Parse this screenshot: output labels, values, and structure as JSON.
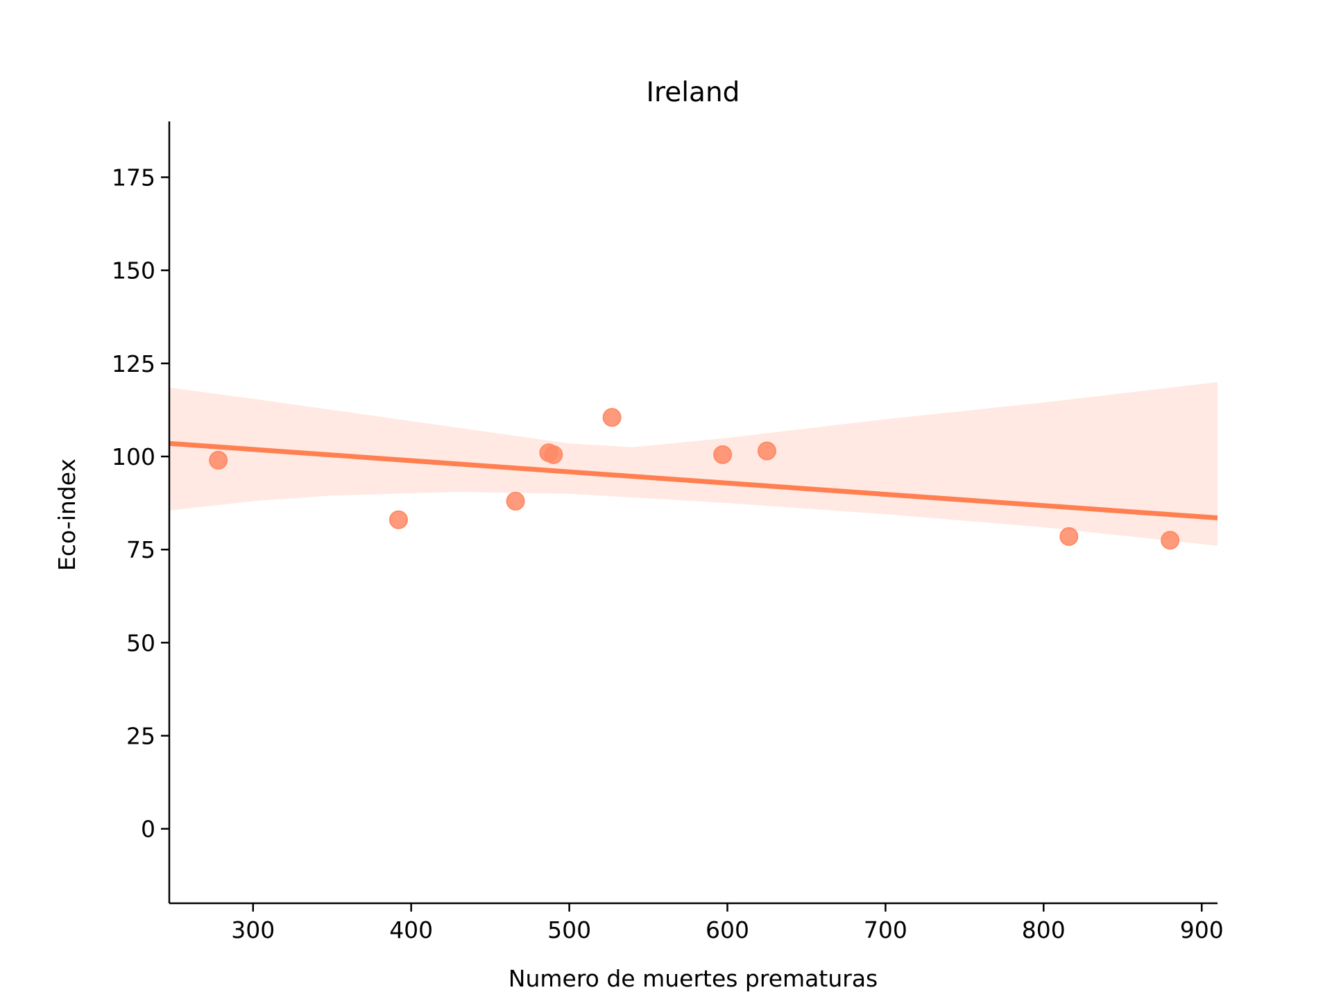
{
  "chart_data": {
    "type": "scatter",
    "title": "Ireland",
    "xlabel": "Numero de muertes prematuras",
    "ylabel": "Eco-index",
    "xlim": [
      247,
      910
    ],
    "ylim": [
      -20,
      190
    ],
    "xticks": [
      300,
      400,
      500,
      600,
      700,
      800,
      900
    ],
    "yticks": [
      0,
      25,
      50,
      75,
      100,
      125,
      150,
      175
    ],
    "grid": false,
    "legend": "none",
    "colors": {
      "points": "#FF8A65",
      "line": "#FF7F50",
      "band": "#FFE9E2"
    },
    "points": [
      {
        "x": 278,
        "y": 99
      },
      {
        "x": 392,
        "y": 83
      },
      {
        "x": 466,
        "y": 88
      },
      {
        "x": 487,
        "y": 101
      },
      {
        "x": 490,
        "y": 100.5
      },
      {
        "x": 527,
        "y": 110.5
      },
      {
        "x": 597,
        "y": 100.5
      },
      {
        "x": 625,
        "y": 101.5
      },
      {
        "x": 816,
        "y": 78.5
      },
      {
        "x": 880,
        "y": 77.5
      }
    ],
    "regression": {
      "line": [
        {
          "x": 247,
          "y": 103.5
        },
        {
          "x": 910,
          "y": 83.5
        }
      ],
      "ci_upper": [
        {
          "x": 247,
          "y": 118.5
        },
        {
          "x": 300,
          "y": 115.5
        },
        {
          "x": 400,
          "y": 109.5
        },
        {
          "x": 450,
          "y": 106.5
        },
        {
          "x": 500,
          "y": 103.5
        },
        {
          "x": 540,
          "y": 102.5
        },
        {
          "x": 600,
          "y": 105
        },
        {
          "x": 700,
          "y": 110
        },
        {
          "x": 800,
          "y": 114.5
        },
        {
          "x": 910,
          "y": 120
        }
      ],
      "ci_lower": [
        {
          "x": 247,
          "y": 85.5
        },
        {
          "x": 300,
          "y": 88
        },
        {
          "x": 350,
          "y": 89.5
        },
        {
          "x": 430,
          "y": 90.5
        },
        {
          "x": 500,
          "y": 90
        },
        {
          "x": 600,
          "y": 87.5
        },
        {
          "x": 700,
          "y": 84.5
        },
        {
          "x": 800,
          "y": 81
        },
        {
          "x": 910,
          "y": 76
        }
      ]
    }
  }
}
